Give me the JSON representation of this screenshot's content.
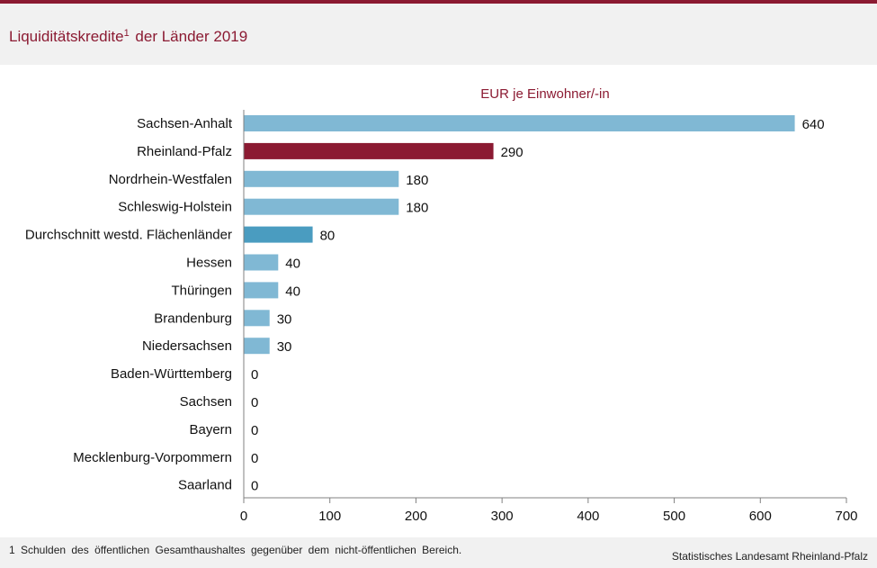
{
  "header": {
    "title_main": "Liquiditätskredite",
    "title_sup": "1",
    "title_rest": " der Länder 2019"
  },
  "chart_data": {
    "type": "bar",
    "orientation": "horizontal",
    "unit_label": "EUR je Einwohner/-in",
    "categories": [
      "Sachsen-Anhalt",
      "Rheinland-Pfalz",
      "Nordrhein-Westfalen",
      "Schleswig-Holstein",
      "Durchschnitt westd. Flächenländer",
      "Hessen",
      "Thüringen",
      "Brandenburg",
      "Niedersachsen",
      "Baden-Württemberg",
      "Sachsen",
      "Bayern",
      "Mecklenburg-Vorpommern",
      "Saarland"
    ],
    "values": [
      640,
      290,
      180,
      180,
      80,
      40,
      40,
      30,
      30,
      0,
      0,
      0,
      0,
      0
    ],
    "xlim": [
      0,
      700
    ],
    "xticks": [
      0,
      100,
      200,
      300,
      400,
      500,
      600,
      700
    ],
    "grid": false,
    "colors": {
      "default": "#80b8d4",
      "highlight_rheinland_pfalz": "#8b1a32",
      "average": "#4a9cc0",
      "accent": "#8b1a32"
    }
  },
  "footer": {
    "footnote": "1 Schulden des öffentlichen Gesamthaushaltes gegenüber dem nicht-öffentlichen Bereich.",
    "source": "Statistisches Landesamt Rheinland-Pfalz"
  }
}
